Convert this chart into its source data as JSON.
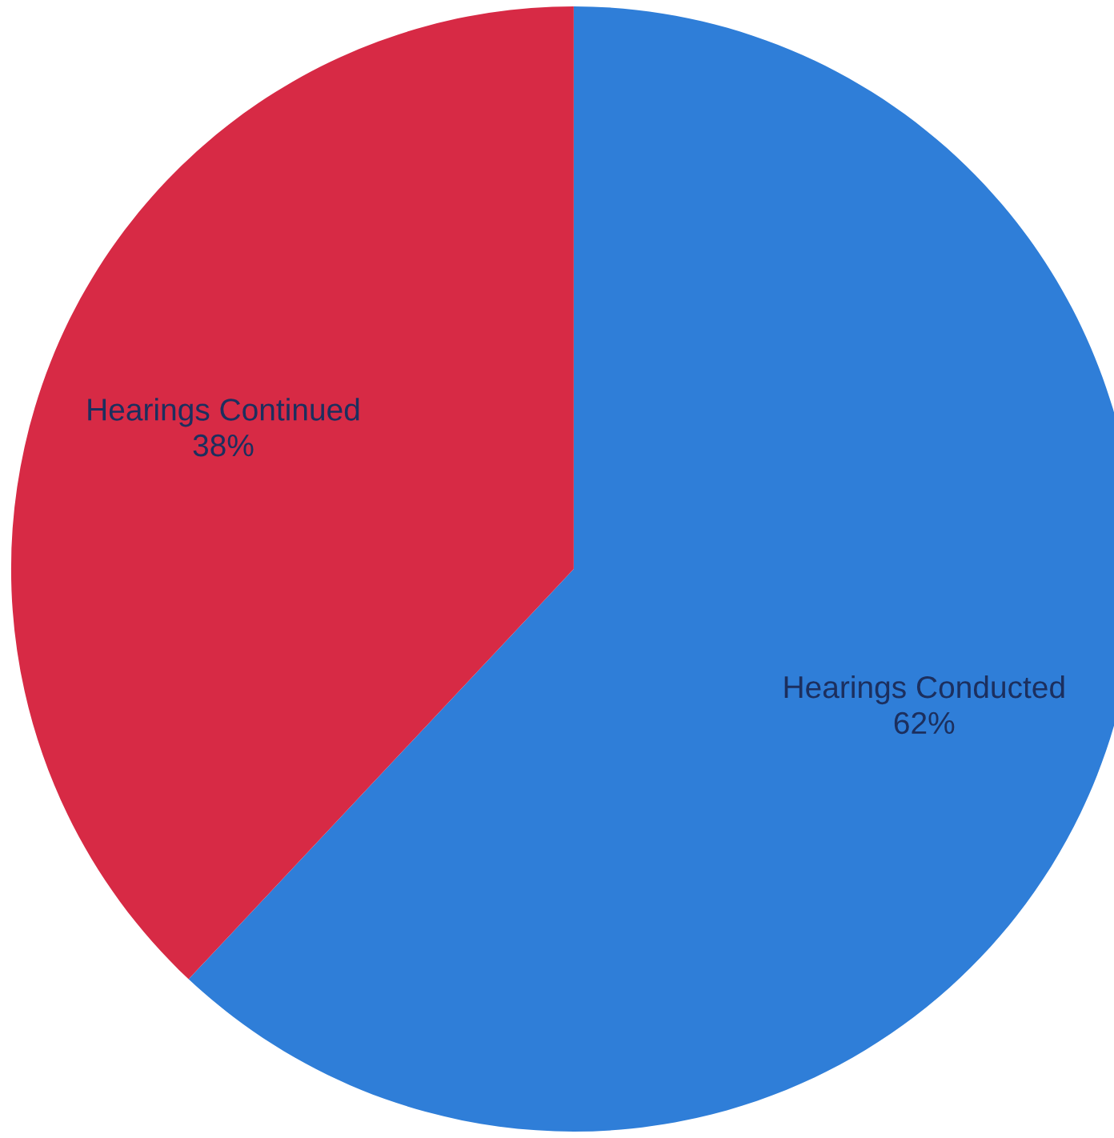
{
  "chart_data": {
    "type": "pie",
    "categories": [
      "Hearings Conducted",
      "Hearings Continued"
    ],
    "values": [
      62,
      38
    ],
    "value_labels": [
      "62%",
      "38%"
    ],
    "colors": [
      "#2f7ed8",
      "#d72a45"
    ]
  }
}
